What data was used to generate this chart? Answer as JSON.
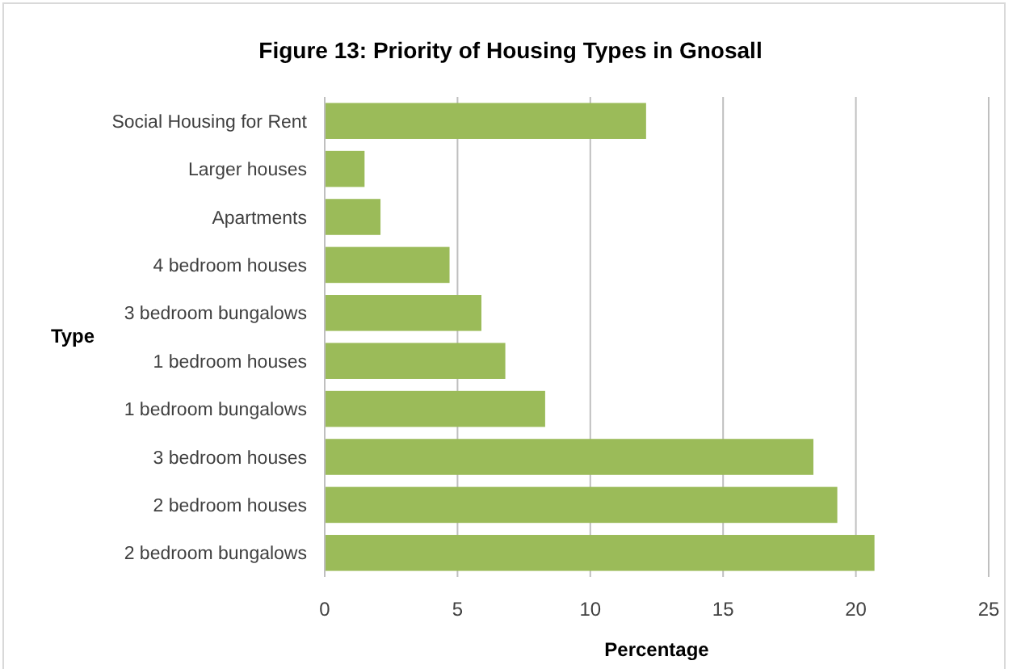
{
  "chart_data": {
    "type": "bar",
    "orientation": "horizontal",
    "title": "Figure 13: Priority of Housing Types in Gnosall",
    "xlabel": "Percentage",
    "ylabel": "Type",
    "categories": [
      "Social Housing for Rent",
      "Larger houses",
      "Apartments",
      "4 bedroom houses",
      "3 bedroom bungalows",
      "1 bedroom houses",
      "1 bedroom bungalows",
      "3 bedroom houses",
      "2 bedroom houses",
      "2 bedroom bungalows"
    ],
    "values": [
      12.1,
      1.5,
      2.1,
      4.7,
      5.9,
      6.8,
      8.3,
      18.4,
      19.3,
      20.7
    ],
    "color": "#9bbb59",
    "xlim": [
      0,
      25
    ],
    "xticks": [
      0,
      5,
      10,
      15,
      20,
      25
    ],
    "grid": "x"
  }
}
